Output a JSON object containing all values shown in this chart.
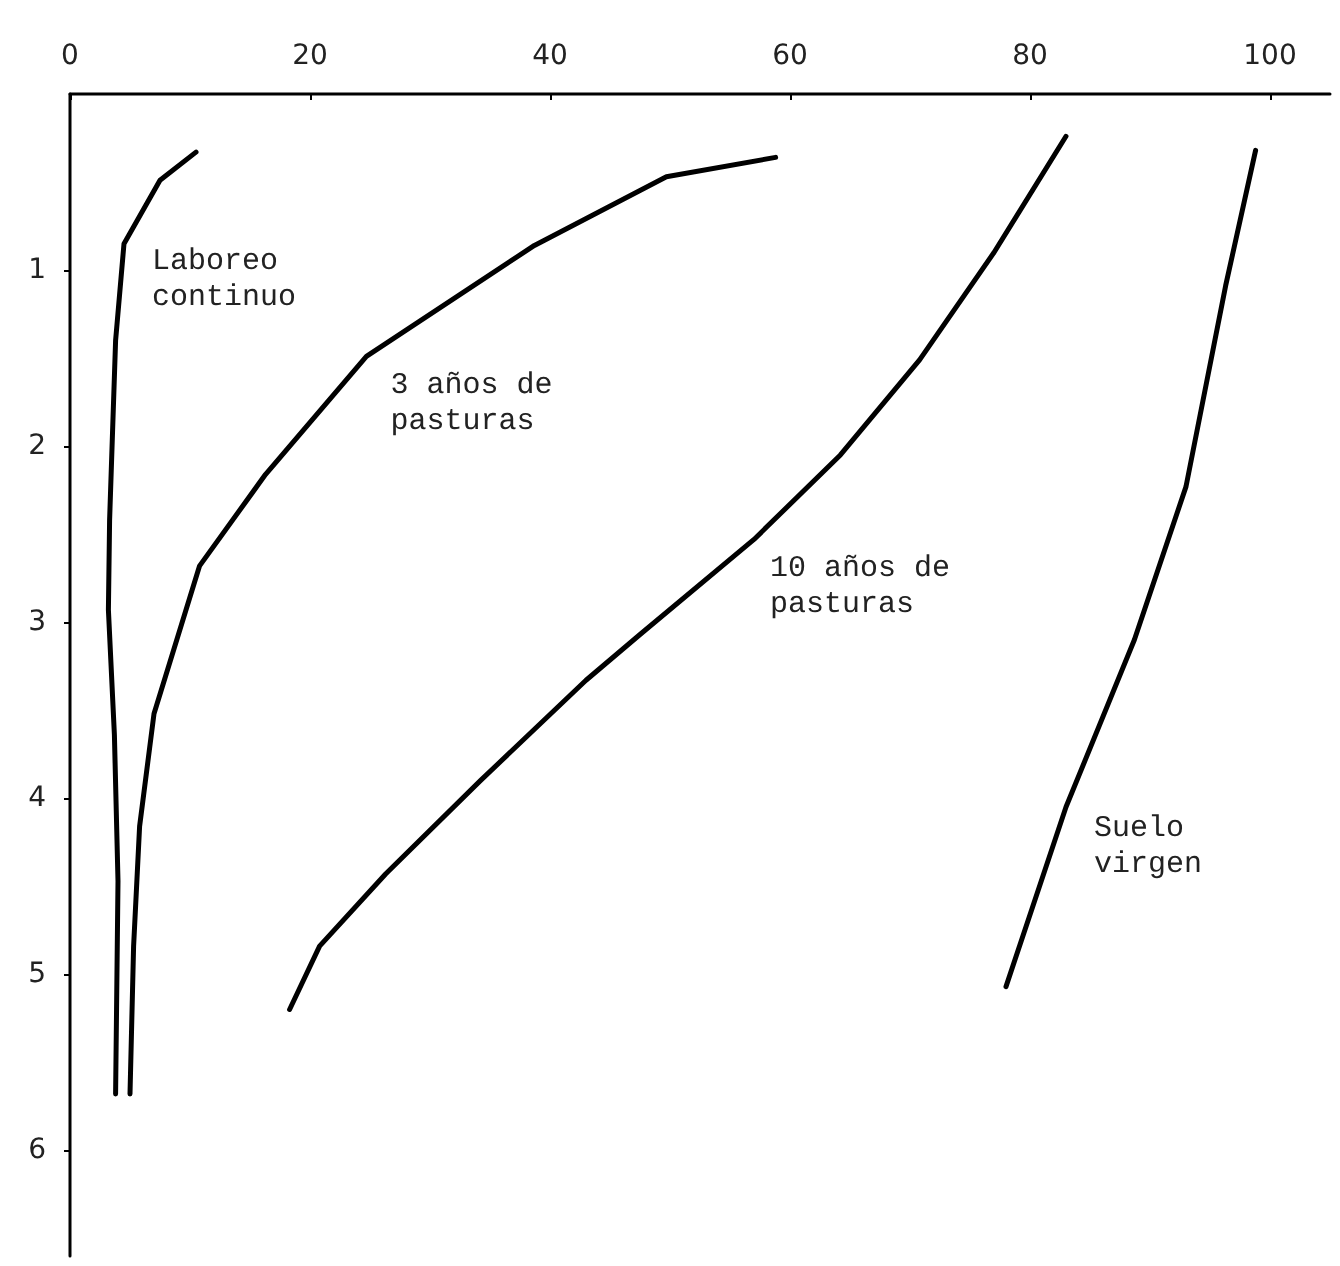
{
  "chart_data": {
    "type": "line",
    "xlim": [
      0,
      105
    ],
    "ylim": [
      6.6,
      0
    ],
    "xticks": [
      0,
      20,
      40,
      60,
      80,
      100
    ],
    "yticks": [
      1,
      2,
      3,
      4,
      5,
      6
    ],
    "grid": false,
    "legend": false,
    "marker": "none",
    "line_style": "solid",
    "series": [
      {
        "name": "Laboreo\ncontinuo",
        "color": "#000000",
        "x": [
          10.5,
          7.5,
          4.5,
          3.8,
          3.3,
          3.2,
          3.7,
          4.0,
          3.8
        ],
        "values": [
          0.33,
          0.49,
          0.85,
          1.4,
          2.42,
          2.93,
          3.64,
          4.47,
          5.68
        ]
      },
      {
        "name": "3 años de\npasturas",
        "color": "#000000",
        "x": [
          58.8,
          49.7,
          38.7,
          24.7,
          16.3,
          10.8,
          7.0,
          5.8,
          5.3,
          5.0
        ],
        "values": [
          0.36,
          0.47,
          0.86,
          1.49,
          2.16,
          2.68,
          3.52,
          4.16,
          4.84,
          5.68
        ]
      },
      {
        "name": "10 años de\npasturas",
        "color": "#000000",
        "x": [
          83,
          77,
          70.8,
          64.2,
          57,
          47.5,
          43,
          34.2,
          26.3,
          20.8,
          18.3
        ],
        "values": [
          0.24,
          0.9,
          1.51,
          2.05,
          2.53,
          3.07,
          3.33,
          3.9,
          4.43,
          4.84,
          5.2
        ]
      },
      {
        "name": "Suelo\nvirgen",
        "color": "#000000",
        "x": [
          98.8,
          96.3,
          93,
          88.7,
          83,
          78
        ],
        "values": [
          0.32,
          1.09,
          2.23,
          3.1,
          4.05,
          5.07
        ]
      }
    ]
  }
}
